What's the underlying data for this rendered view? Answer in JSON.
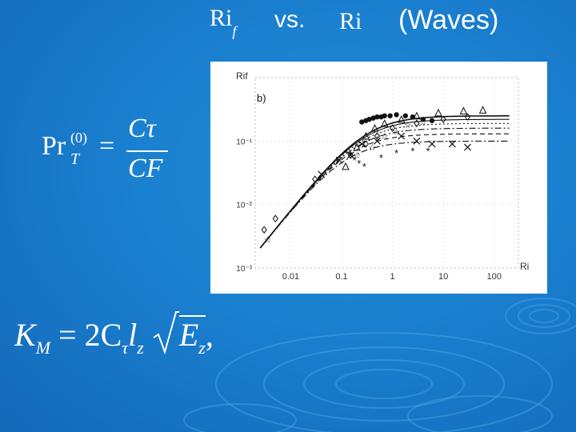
{
  "title": {
    "lhs": "Ri",
    "lhs_sub": "f",
    "vs": "vs.",
    "rhs": "Ri",
    "waves": "(Waves)"
  },
  "formula1": {
    "lhs": "Pr",
    "sup": "(0)",
    "sub": "T",
    "eq": "=",
    "num": "Cτ",
    "den": "CF"
  },
  "formula2": {
    "text": "K",
    "sub_m": "M",
    "rest": " = 2C",
    "sub_tau": "τ",
    "l": "l",
    "sub_z": "z",
    "e": "E",
    "sub_z2": "z",
    "comma": ","
  },
  "chart_data": {
    "type": "scatter",
    "panel_label": "b)",
    "ylabel": "Ri_f",
    "xlabel": "Ri",
    "x_scale": "log",
    "y_scale": "log",
    "xlim": [
      0.002,
      300
    ],
    "ylim": [
      0.001,
      1
    ],
    "x_ticks": [
      "0.01",
      "0.1",
      "1",
      "10",
      "100"
    ],
    "y_ticks": [
      "10⁻¹",
      "10⁻²",
      "10⁻³"
    ],
    "series": [
      {
        "marker": "filled-circle",
        "x": [
          0.25,
          0.3,
          0.35,
          0.42,
          0.5,
          0.6,
          0.7,
          0.9,
          1.2,
          1.8,
          2.5,
          4,
          6
        ],
        "y": [
          0.2,
          0.21,
          0.22,
          0.23,
          0.24,
          0.24,
          0.25,
          0.25,
          0.26,
          0.25,
          0.24,
          0.22,
          0.21
        ]
      },
      {
        "marker": "triangle",
        "x": [
          0.12,
          0.2,
          0.3,
          0.45,
          0.7,
          1.5,
          3,
          8,
          25,
          60
        ],
        "y": [
          0.04,
          0.08,
          0.12,
          0.16,
          0.19,
          0.22,
          0.25,
          0.28,
          0.3,
          0.31
        ]
      },
      {
        "marker": "diamond",
        "x": [
          0.003,
          0.005,
          0.03,
          0.15,
          0.3,
          0.5,
          1,
          3,
          10,
          30
        ],
        "y": [
          0.004,
          0.006,
          0.025,
          0.06,
          0.09,
          0.12,
          0.16,
          0.19,
          0.22,
          0.24
        ]
      },
      {
        "marker": "star",
        "x": [
          0.0035,
          0.2,
          0.4,
          0.7,
          1.2,
          2,
          4
        ],
        "y": [
          0.0028,
          0.06,
          0.08,
          0.12,
          0.14,
          0.18,
          0.2
        ]
      },
      {
        "marker": "x",
        "x": [
          0.04,
          0.09,
          0.15,
          0.25,
          0.5,
          1.5,
          3,
          6,
          15,
          30
        ],
        "y": [
          0.03,
          0.05,
          0.06,
          0.09,
          0.1,
          0.12,
          0.1,
          0.09,
          0.09,
          0.08
        ]
      },
      {
        "marker": "asterisk",
        "x": [
          0.12,
          0.15,
          0.18,
          0.22,
          0.28,
          0.6,
          1.2,
          2.5,
          5
        ],
        "y": [
          0.065,
          0.06,
          0.05,
          0.045,
          0.04,
          0.055,
          0.065,
          0.07,
          0.07
        ]
      }
    ],
    "curves": [
      {
        "style": "solid",
        "plateau": 0.25
      },
      {
        "style": "solid",
        "plateau": 0.22
      },
      {
        "style": "dotted",
        "plateau": 0.19
      },
      {
        "style": "dashdot",
        "plateau": 0.16
      },
      {
        "style": "dashed",
        "plateau": 0.13
      },
      {
        "style": "dashdot",
        "plateau": 0.1
      }
    ]
  }
}
